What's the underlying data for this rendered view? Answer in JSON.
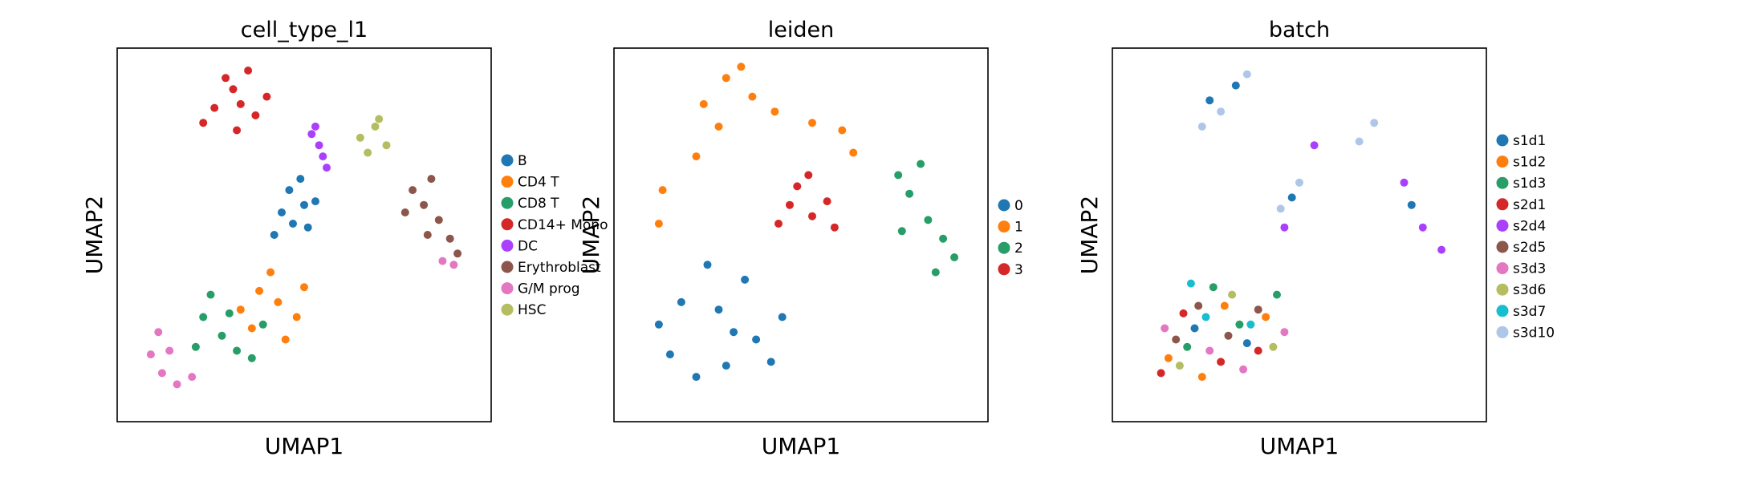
{
  "chart_data": [
    {
      "type": "scatter",
      "title": "cell_type_l1",
      "xlabel": "UMAP1",
      "ylabel": "UMAP2",
      "xlim": [
        0,
        10
      ],
      "ylim": [
        0,
        10
      ],
      "grid": false,
      "legend_position": "right",
      "series": [
        {
          "name": "B",
          "color": "#1f77b4",
          "points": [
            [
              4.7,
              5.3
            ],
            [
              4.4,
              5.6
            ],
            [
              5.0,
              5.8
            ],
            [
              4.6,
              6.2
            ],
            [
              5.1,
              5.2
            ],
            [
              4.2,
              5.0
            ],
            [
              4.9,
              6.5
            ],
            [
              5.3,
              5.9
            ]
          ]
        },
        {
          "name": "CD4 T",
          "color": "#ff7f0e",
          "points": [
            [
              3.8,
              3.5
            ],
            [
              4.3,
              3.2
            ],
            [
              4.8,
              2.8
            ],
            [
              3.6,
              2.5
            ],
            [
              4.5,
              2.2
            ],
            [
              5.0,
              3.6
            ],
            [
              4.1,
              4.0
            ],
            [
              3.3,
              3.0
            ]
          ]
        },
        {
          "name": "CD8 T",
          "color": "#279e68",
          "points": [
            [
              2.3,
              2.8
            ],
            [
              2.8,
              2.3
            ],
            [
              3.2,
              1.9
            ],
            [
              3.0,
              2.9
            ],
            [
              2.5,
              3.4
            ],
            [
              3.6,
              1.7
            ],
            [
              3.9,
              2.6
            ],
            [
              2.1,
              2.0
            ]
          ]
        },
        {
          "name": "CD14+ Mono",
          "color": "#d62728",
          "points": [
            [
              2.6,
              8.4
            ],
            [
              3.1,
              8.9
            ],
            [
              3.7,
              8.2
            ],
            [
              3.2,
              7.8
            ],
            [
              2.9,
              9.2
            ],
            [
              3.5,
              9.4
            ],
            [
              4.0,
              8.7
            ],
            [
              2.3,
              8.0
            ],
            [
              3.3,
              8.5
            ]
          ]
        },
        {
          "name": "DC",
          "color": "#aa40fc",
          "points": [
            [
              5.2,
              7.7
            ],
            [
              5.4,
              7.4
            ],
            [
              5.5,
              7.1
            ],
            [
              5.3,
              7.9
            ],
            [
              5.6,
              6.8
            ]
          ]
        },
        {
          "name": "Erythroblast",
          "color": "#8c564b",
          "points": [
            [
              8.2,
              5.8
            ],
            [
              8.6,
              5.4
            ],
            [
              7.9,
              6.2
            ],
            [
              8.9,
              4.9
            ],
            [
              8.4,
              6.5
            ],
            [
              7.7,
              5.6
            ],
            [
              9.1,
              4.5
            ],
            [
              8.3,
              5.0
            ]
          ]
        },
        {
          "name": "G/M prog",
          "color": "#e377c2",
          "points": [
            [
              0.9,
              1.8
            ],
            [
              1.2,
              1.3
            ],
            [
              1.6,
              1.0
            ],
            [
              1.1,
              2.4
            ],
            [
              2.0,
              1.2
            ],
            [
              1.4,
              1.9
            ],
            [
              9.0,
              4.2
            ],
            [
              8.7,
              4.3
            ]
          ]
        },
        {
          "name": "HSC",
          "color": "#b5bd61",
          "points": [
            [
              6.5,
              7.6
            ],
            [
              6.9,
              7.9
            ],
            [
              7.2,
              7.4
            ],
            [
              6.7,
              7.2
            ],
            [
              7.0,
              8.1
            ]
          ]
        }
      ]
    },
    {
      "type": "scatter",
      "title": "leiden",
      "xlabel": "UMAP1",
      "ylabel": "UMAP2",
      "xlim": [
        0,
        10
      ],
      "ylim": [
        0,
        10
      ],
      "grid": false,
      "legend_position": "right",
      "series": [
        {
          "name": "0",
          "color": "#1f77b4",
          "points": [
            [
              1.5,
              1.8
            ],
            [
              2.2,
              1.2
            ],
            [
              3.0,
              1.5
            ],
            [
              3.8,
              2.2
            ],
            [
              4.5,
              2.8
            ],
            [
              2.8,
              3.0
            ],
            [
              1.8,
              3.2
            ],
            [
              3.5,
              3.8
            ],
            [
              4.2,
              1.6
            ],
            [
              1.2,
              2.6
            ],
            [
              2.5,
              4.2
            ],
            [
              3.2,
              2.4
            ]
          ]
        },
        {
          "name": "1",
          "color": "#ff7f0e",
          "points": [
            [
              2.4,
              8.5
            ],
            [
              3.0,
              9.2
            ],
            [
              3.7,
              8.7
            ],
            [
              2.8,
              7.9
            ],
            [
              4.3,
              8.3
            ],
            [
              3.4,
              9.5
            ],
            [
              1.3,
              6.2
            ],
            [
              1.2,
              5.3
            ],
            [
              5.3,
              8.0
            ],
            [
              6.1,
              7.8
            ],
            [
              2.2,
              7.1
            ],
            [
              6.4,
              7.2
            ]
          ]
        },
        {
          "name": "2",
          "color": "#279e68",
          "points": [
            [
              7.9,
              6.1
            ],
            [
              8.4,
              5.4
            ],
            [
              8.8,
              4.9
            ],
            [
              7.6,
              6.6
            ],
            [
              8.2,
              6.9
            ],
            [
              9.1,
              4.4
            ],
            [
              8.6,
              4.0
            ],
            [
              7.7,
              5.1
            ]
          ]
        },
        {
          "name": "3",
          "color": "#d62728",
          "points": [
            [
              4.7,
              5.8
            ],
            [
              5.3,
              5.5
            ],
            [
              4.9,
              6.3
            ],
            [
              5.7,
              5.9
            ],
            [
              4.4,
              5.3
            ],
            [
              5.2,
              6.6
            ],
            [
              5.9,
              5.2
            ]
          ]
        }
      ]
    },
    {
      "type": "scatter",
      "title": "batch",
      "xlabel": "UMAP1",
      "ylabel": "UMAP2",
      "xlim": [
        0,
        10
      ],
      "ylim": [
        0,
        10
      ],
      "grid": false,
      "legend_position": "right",
      "series": [
        {
          "name": "s1d1",
          "color": "#1f77b4",
          "points": [
            [
              2.6,
              8.6
            ],
            [
              3.3,
              9.0
            ],
            [
              2.2,
              2.5
            ],
            [
              3.6,
              2.1
            ],
            [
              4.8,
              6.0
            ],
            [
              8.0,
              5.8
            ]
          ]
        },
        {
          "name": "s1d2",
          "color": "#ff7f0e",
          "points": [
            [
              1.5,
              1.7
            ],
            [
              2.4,
              1.2
            ],
            [
              3.0,
              3.1
            ],
            [
              4.1,
              2.8
            ]
          ]
        },
        {
          "name": "s1d3",
          "color": "#279e68",
          "points": [
            [
              2.0,
              2.0
            ],
            [
              3.4,
              2.6
            ],
            [
              4.4,
              3.4
            ],
            [
              2.7,
              3.6
            ]
          ]
        },
        {
          "name": "s2d1",
          "color": "#d62728",
          "points": [
            [
              1.3,
              1.3
            ],
            [
              1.9,
              2.9
            ],
            [
              2.9,
              1.6
            ],
            [
              3.9,
              1.9
            ]
          ]
        },
        {
          "name": "s2d4",
          "color": "#aa40fc",
          "points": [
            [
              8.3,
              5.2
            ],
            [
              8.8,
              4.6
            ],
            [
              7.8,
              6.4
            ],
            [
              5.4,
              7.4
            ],
            [
              4.6,
              5.2
            ]
          ]
        },
        {
          "name": "s2d5",
          "color": "#8c564b",
          "points": [
            [
              2.3,
              3.1
            ],
            [
              3.1,
              2.3
            ],
            [
              3.9,
              3.0
            ],
            [
              1.7,
              2.2
            ]
          ]
        },
        {
          "name": "s3d3",
          "color": "#e377c2",
          "points": [
            [
              1.4,
              2.5
            ],
            [
              2.6,
              1.9
            ],
            [
              3.5,
              1.4
            ],
            [
              4.6,
              2.4
            ]
          ]
        },
        {
          "name": "s3d6",
          "color": "#b5bd61",
          "points": [
            [
              1.8,
              1.5
            ],
            [
              3.2,
              3.4
            ],
            [
              4.3,
              2.0
            ]
          ]
        },
        {
          "name": "s3d7",
          "color": "#17becf",
          "points": [
            [
              2.1,
              3.7
            ],
            [
              3.7,
              2.6
            ],
            [
              2.5,
              2.8
            ]
          ]
        },
        {
          "name": "s3d10",
          "color": "#aec7e8",
          "points": [
            [
              2.9,
              8.3
            ],
            [
              3.6,
              9.3
            ],
            [
              2.4,
              7.9
            ],
            [
              6.6,
              7.5
            ],
            [
              7.0,
              8.0
            ],
            [
              5.0,
              6.4
            ],
            [
              4.5,
              5.7
            ]
          ]
        }
      ]
    }
  ]
}
